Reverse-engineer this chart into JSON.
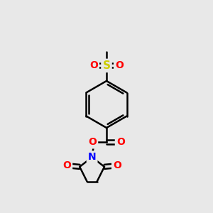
{
  "bg_color": "#e8e8e8",
  "bond_color": "#000000",
  "bond_width": 1.8,
  "atom_colors": {
    "O": "#ff0000",
    "N": "#0000ff",
    "S": "#cccc00",
    "C": "#000000"
  },
  "font_size": 10,
  "fig_size": [
    3.0,
    3.0
  ],
  "dpi": 100
}
